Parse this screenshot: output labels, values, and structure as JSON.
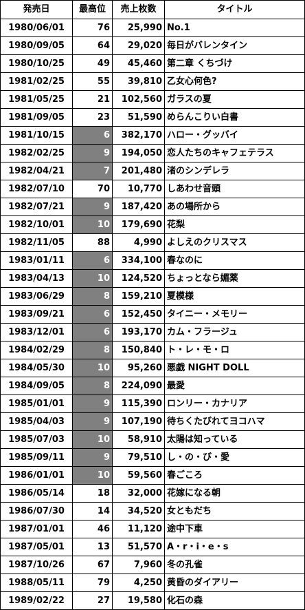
{
  "headers": {
    "date": "発売日",
    "rank": "最高位",
    "sales": "売上枚数",
    "title": "タイトル"
  },
  "colors": {
    "highlight": "#808080",
    "highlight_text": "#ffffff"
  },
  "rows": [
    {
      "date": "1980/06/01",
      "rank": "76",
      "sales": "25,990",
      "title": "No.1",
      "highlight": false
    },
    {
      "date": "1980/09/05",
      "rank": "64",
      "sales": "29,020",
      "title": "毎日がバレンタイン",
      "highlight": false
    },
    {
      "date": "1980/10/25",
      "rank": "49",
      "sales": "45,460",
      "title": "第二章 くちづけ",
      "highlight": false
    },
    {
      "date": "1981/02/25",
      "rank": "55",
      "sales": "39,810",
      "title": "乙女心何色?",
      "highlight": false
    },
    {
      "date": "1981/05/25",
      "rank": "21",
      "sales": "102,560",
      "title": "ガラスの夏",
      "highlight": false
    },
    {
      "date": "1981/09/05",
      "rank": "23",
      "sales": "51,590",
      "title": "めらんこりい白書",
      "highlight": false
    },
    {
      "date": "1981/10/15",
      "rank": "6",
      "sales": "382,170",
      "title": "ハロー・グッバイ",
      "highlight": true
    },
    {
      "date": "1982/02/25",
      "rank": "9",
      "sales": "194,050",
      "title": "恋人たちのキャフェテラス",
      "highlight": true
    },
    {
      "date": "1982/04/21",
      "rank": "7",
      "sales": "201,480",
      "title": "渚のシンデレラ",
      "highlight": true
    },
    {
      "date": "1982/07/10",
      "rank": "70",
      "sales": "10,770",
      "title": "しあわせ音頭",
      "highlight": false
    },
    {
      "date": "1982/07/21",
      "rank": "9",
      "sales": "187,420",
      "title": "あの場所から",
      "highlight": true
    },
    {
      "date": "1982/10/01",
      "rank": "10",
      "sales": "179,690",
      "title": "花梨",
      "highlight": true
    },
    {
      "date": "1982/11/05",
      "rank": "88",
      "sales": "4,990",
      "title": "よしえのクリスマス",
      "highlight": false
    },
    {
      "date": "1983/01/11",
      "rank": "6",
      "sales": "334,100",
      "title": "春なのに",
      "highlight": true
    },
    {
      "date": "1983/04/13",
      "rank": "10",
      "sales": "124,520",
      "title": "ちょっとなら媚薬",
      "highlight": true
    },
    {
      "date": "1983/06/29",
      "rank": "8",
      "sales": "159,210",
      "title": "夏模様",
      "highlight": true
    },
    {
      "date": "1983/09/21",
      "rank": "6",
      "sales": "152,450",
      "title": "タイニー・メモリー",
      "highlight": true
    },
    {
      "date": "1983/12/01",
      "rank": "6",
      "sales": "193,170",
      "title": "カム・フラージュ",
      "highlight": true
    },
    {
      "date": "1984/02/29",
      "rank": "8",
      "sales": "150,840",
      "title": "ト・レ・モ・ロ",
      "highlight": true
    },
    {
      "date": "1984/05/30",
      "rank": "10",
      "sales": "95,260",
      "title": "悪戯 NIGHT DOLL",
      "highlight": true
    },
    {
      "date": "1984/09/05",
      "rank": "8",
      "sales": "224,090",
      "title": "最愛",
      "highlight": true
    },
    {
      "date": "1985/01/01",
      "rank": "9",
      "sales": "115,390",
      "title": "ロンリー・カナリア",
      "highlight": true
    },
    {
      "date": "1985/04/03",
      "rank": "9",
      "sales": "107,190",
      "title": "待ちくたびれてヨコハマ",
      "highlight": true
    },
    {
      "date": "1985/07/03",
      "rank": "10",
      "sales": "58,910",
      "title": "太陽は知っている",
      "highlight": true
    },
    {
      "date": "1985/09/11",
      "rank": "9",
      "sales": "79,510",
      "title": "し・の・び・愛",
      "highlight": true
    },
    {
      "date": "1986/01/01",
      "rank": "10",
      "sales": "59,560",
      "title": "春ごころ",
      "highlight": true
    },
    {
      "date": "1986/05/14",
      "rank": "18",
      "sales": "32,000",
      "title": "花嫁になる朝",
      "highlight": false
    },
    {
      "date": "1986/07/30",
      "rank": "14",
      "sales": "34,520",
      "title": "女ともだち",
      "highlight": false
    },
    {
      "date": "1987/01/01",
      "rank": "46",
      "sales": "11,120",
      "title": "途中下車",
      "highlight": false
    },
    {
      "date": "1987/05/01",
      "rank": "13",
      "sales": "51,570",
      "title": "A・r・i・e・s",
      "highlight": false
    },
    {
      "date": "1987/10/26",
      "rank": "67",
      "sales": "7,960",
      "title": "冬の孔雀",
      "highlight": false
    },
    {
      "date": "1988/05/11",
      "rank": "79",
      "sales": "4,250",
      "title": "黄昏のダイアリー",
      "highlight": false
    },
    {
      "date": "1989/02/22",
      "rank": "27",
      "sales": "19,580",
      "title": "化石の森",
      "highlight": false
    }
  ]
}
